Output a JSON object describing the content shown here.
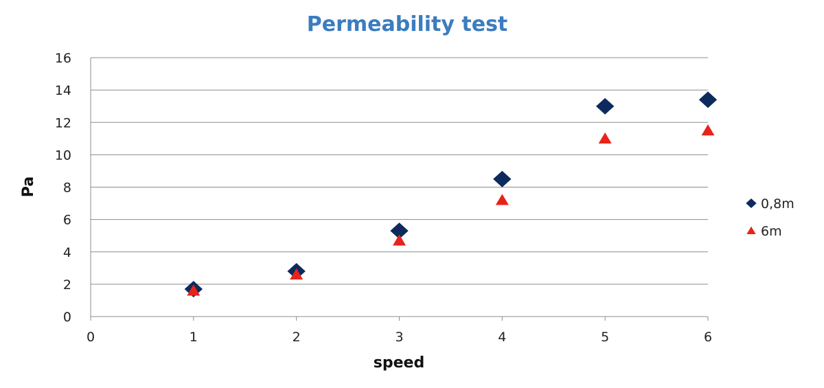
{
  "chart_data": {
    "type": "scatter",
    "title": "Permeability test",
    "xlabel": "speed",
    "ylabel": "Pa",
    "xlim": [
      0,
      6
    ],
    "ylim": [
      0,
      16
    ],
    "x_ticks": [
      "0",
      "1",
      "2",
      "3",
      "4",
      "5",
      "6"
    ],
    "y_ticks": [
      "0",
      "2",
      "4",
      "6",
      "8",
      "10",
      "12",
      "14",
      "16"
    ],
    "grid": "horizontal",
    "legend_position": "right",
    "series": [
      {
        "name": "0,8m",
        "marker": "diamond",
        "color": "#0d2a5c",
        "x": [
          1,
          2,
          3,
          4,
          5,
          6
        ],
        "y": [
          1.7,
          2.8,
          5.3,
          8.5,
          13.0,
          13.4
        ]
      },
      {
        "name": "6m",
        "marker": "triangle",
        "color": "#e8231a",
        "x": [
          1,
          2,
          3,
          4,
          5,
          6
        ],
        "y": [
          1.6,
          2.6,
          4.7,
          7.2,
          11.0,
          11.5
        ]
      }
    ]
  }
}
